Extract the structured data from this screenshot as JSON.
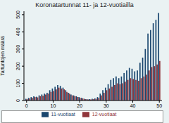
{
  "chart_data": {
    "type": "bar",
    "title": "Koronatartunnat 11- ja 12-vuotiailla",
    "y_label": "Tartuntojen määrä",
    "x": [
      0,
      1,
      2,
      3,
      4,
      5,
      6,
      7,
      8,
      9,
      10,
      11,
      12,
      13,
      14,
      15,
      16,
      17,
      18,
      19,
      20,
      21,
      22,
      23,
      24,
      25,
      26,
      27,
      28,
      29,
      30,
      31,
      32,
      33,
      34,
      35,
      36,
      37,
      38,
      39,
      40,
      41,
      42,
      43,
      44,
      45,
      46,
      47,
      48,
      49,
      50
    ],
    "series": [
      {
        "name": "11-vuotiaat",
        "color": "#1a476f",
        "values": [
          10,
          15,
          20,
          25,
          22,
          30,
          35,
          40,
          45,
          60,
          70,
          80,
          90,
          85,
          75,
          60,
          45,
          35,
          30,
          25,
          20,
          15,
          10,
          8,
          8,
          10,
          12,
          20,
          40,
          60,
          75,
          95,
          120,
          130,
          140,
          130,
          140,
          160,
          175,
          190,
          185,
          170,
          175,
          220,
          250,
          300,
          390,
          410,
          450,
          470,
          510
        ]
      },
      {
        "name": "12-vuotiaat",
        "color": "#90353b",
        "values": [
          8,
          12,
          15,
          20,
          18,
          25,
          28,
          35,
          40,
          50,
          55,
          65,
          75,
          70,
          65,
          50,
          40,
          30,
          25,
          20,
          15,
          12,
          8,
          6,
          6,
          8,
          10,
          15,
          30,
          45,
          60,
          70,
          80,
          90,
          100,
          95,
          100,
          110,
          120,
          130,
          125,
          120,
          115,
          130,
          140,
          150,
          175,
          195,
          200,
          210,
          230
        ]
      }
    ],
    "xlim": [
      -1,
      51
    ],
    "xticks": [
      0,
      10,
      20,
      30,
      40,
      50
    ],
    "ylim": [
      0,
      520
    ],
    "yticks": [
      0,
      100,
      200,
      300,
      400,
      500
    ],
    "grid": false,
    "legend": "bottom"
  }
}
